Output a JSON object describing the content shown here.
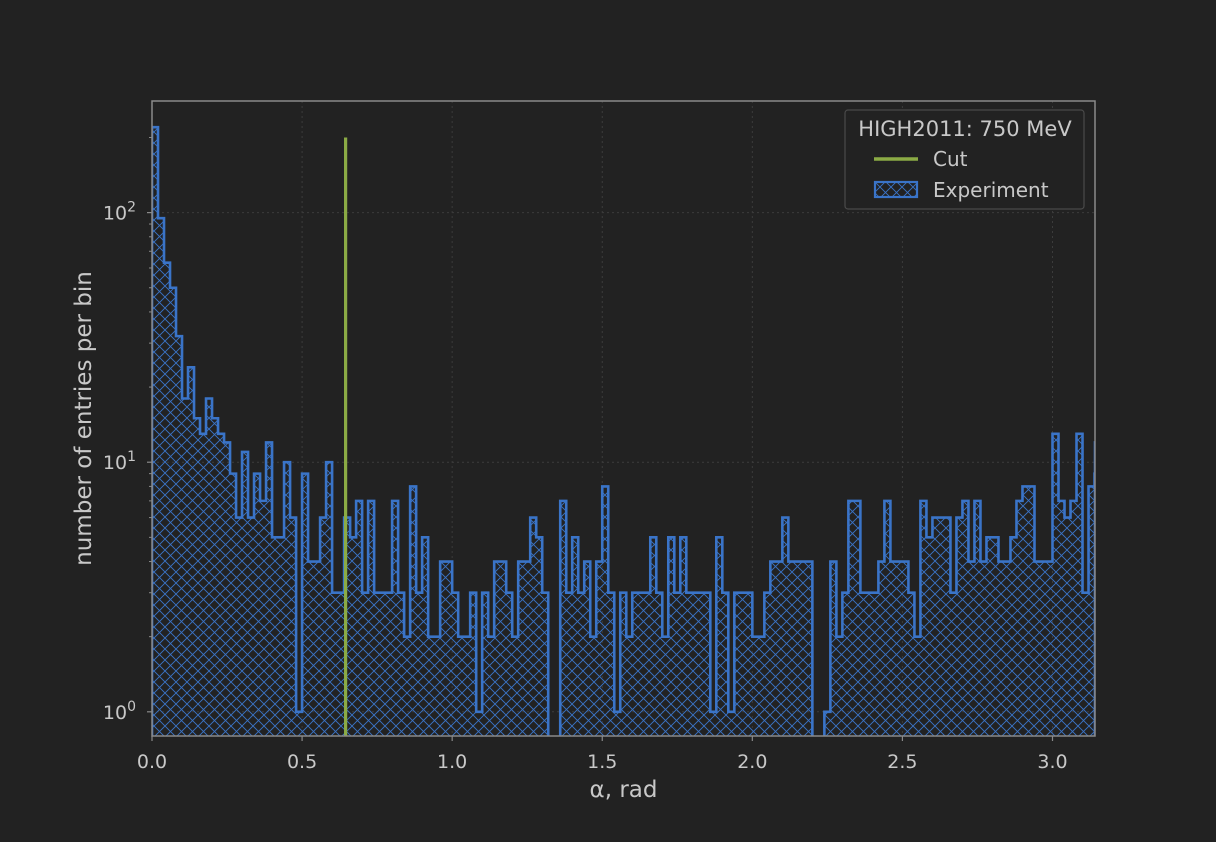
{
  "chart_data": {
    "type": "histogram",
    "title": "",
    "xlabel": "α, rad",
    "ylabel": "number of entries per bin",
    "xlim": [
      0.0,
      3.1416
    ],
    "ylim": [
      0.8,
      280
    ],
    "yscale": "log",
    "grid": true,
    "legend_position": "top-right",
    "x_ticks": [
      "0.0",
      "0.5",
      "1.0",
      "1.5",
      "2.0",
      "2.5",
      "3.0"
    ],
    "x_tick_values": [
      0.0,
      0.5,
      1.0,
      1.5,
      2.0,
      2.5,
      3.0
    ],
    "y_ticks": [
      {
        "value": 1,
        "base": "10",
        "exp": "0"
      },
      {
        "value": 10,
        "base": "10",
        "exp": "1"
      },
      {
        "value": 100,
        "base": "10",
        "exp": "2"
      }
    ],
    "legend_title": "HIGH2011: 750 MeV",
    "cut": {
      "name": "Cut",
      "x": 0.645,
      "y_top": 200,
      "color": "#8bab45"
    },
    "histogram": {
      "name": "Experiment",
      "color": "#3a74c8",
      "bin_start": 0.0,
      "bin_width": 0.02,
      "counts": [
        220,
        95,
        63,
        50,
        32,
        18,
        24,
        15,
        13,
        18,
        15,
        13,
        12,
        9,
        6,
        11,
        6,
        9,
        7,
        12,
        5,
        5,
        10,
        6,
        1,
        9,
        4,
        4,
        6,
        10,
        3,
        3,
        6,
        5,
        7,
        3,
        7,
        3,
        3,
        3,
        7,
        3,
        2,
        8,
        3,
        5,
        2,
        2,
        4,
        4,
        3,
        2,
        2,
        3,
        1,
        3,
        2,
        4,
        4,
        3,
        2,
        4,
        4,
        6,
        5,
        3,
        0,
        0,
        7,
        3,
        5,
        3,
        4,
        2,
        4,
        8,
        3,
        1,
        3,
        2,
        3,
        3,
        3,
        5,
        3,
        2,
        5,
        3,
        5,
        3,
        3,
        3,
        3,
        1,
        5,
        3,
        1,
        3,
        3,
        3,
        2,
        2,
        3,
        4,
        4,
        6,
        4,
        4,
        4,
        4,
        0,
        0,
        1,
        4,
        2,
        3,
        7,
        7,
        3,
        3,
        3,
        4,
        7,
        4,
        4,
        4,
        3,
        2,
        7,
        5,
        6,
        6,
        6,
        3,
        6,
        7,
        4,
        7,
        4,
        5,
        5,
        4,
        4,
        5,
        7,
        8,
        8,
        4,
        4,
        4,
        13,
        7,
        6,
        7,
        13,
        3,
        8,
        9,
        3,
        13,
        12
      ]
    },
    "legend_entries": [
      "Cut",
      "Experiment"
    ]
  }
}
